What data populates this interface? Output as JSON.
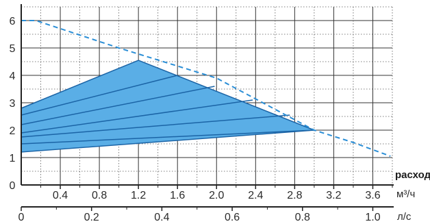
{
  "chart_data": {
    "type": "area",
    "title": "",
    "grid": true,
    "y_axis": {
      "range": [
        0,
        6.5
      ],
      "ticks": [
        "0",
        "1",
        "2",
        "3",
        "4",
        "5",
        "6"
      ]
    },
    "x_axis_flow_m3h": {
      "range": [
        0,
        3.8
      ],
      "ticks": [
        "0.4",
        "0.8",
        "1.2",
        "1.6",
        "2.0",
        "2.4",
        "2.8",
        "3.2",
        "3.6"
      ],
      "label": "расход",
      "unit": "м³/ч"
    },
    "x_axis_flow_ls": {
      "range": [
        0,
        1.05
      ],
      "ticks": [
        "0",
        "0.2",
        "0.4",
        "0.6",
        "0.8",
        "1.0"
      ],
      "unit": "л/с"
    },
    "envelope_upper": {
      "x": [
        0,
        1.2,
        3.0
      ],
      "y": [
        2.8,
        4.55,
        2.0
      ]
    },
    "envelope_lower": {
      "x": [
        0,
        3.0
      ],
      "y": [
        1.2,
        2.0
      ]
    },
    "dashed_max_curve": {
      "x": [
        0,
        0.15,
        1.0,
        2.0,
        3.0,
        3.4,
        3.78
      ],
      "y": [
        6.0,
        6.0,
        5.0,
        3.9,
        2.0,
        1.55,
        1.05
      ]
    },
    "inner_curves": [
      {
        "x": [
          0,
          1.6
        ],
        "y": [
          2.55,
          4.0
        ]
      },
      {
        "x": [
          0,
          1.98
        ],
        "y": [
          2.2,
          3.6
        ]
      },
      {
        "x": [
          0,
          2.37
        ],
        "y": [
          1.9,
          3.1
        ]
      },
      {
        "x": [
          0,
          2.75
        ],
        "y": [
          1.75,
          2.55
        ]
      },
      {
        "x": [
          0,
          3.0
        ],
        "y": [
          1.5,
          2.0
        ]
      }
    ],
    "colors": {
      "fill": "#5aaee6",
      "line": "#1b64a6",
      "grid_dot": "#555555",
      "axis": "#222222"
    }
  }
}
